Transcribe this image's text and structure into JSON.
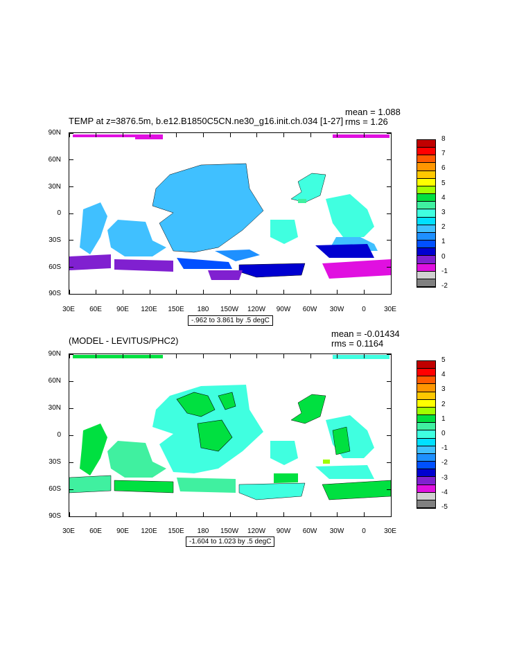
{
  "top_plot": {
    "title": "TEMP at z=3876.5m, b.e12.B1850C5CN.ne30_g16.init.ch.034 [1-27]",
    "mean": "mean = 1.088",
    "rms": "rms = 1.26",
    "contour_info": "-.962 to 3.861 by .5 degC",
    "colorbar_labels": [
      "8",
      "7",
      "6",
      "5",
      "4",
      "3",
      "2",
      "1",
      "0",
      "-1",
      "-2"
    ],
    "colorbar_colors": [
      "#c00000",
      "#ff0000",
      "#ff5a00",
      "#ff9600",
      "#ffc800",
      "#ffff00",
      "#a0ff00",
      "#00e040",
      "#40f0a0",
      "#40ffe0",
      "#00e0ff",
      "#40c0ff",
      "#1e90ff",
      "#0050ff",
      "#0000d0",
      "#8020d0",
      "#e010e0",
      "#d0d0d0",
      "#808080"
    ]
  },
  "bottom_plot": {
    "title": "(MODEL - LEVITUS/PHC2)",
    "mean": "mean = -0.01434",
    "rms": "rms = 0.1164",
    "contour_info": "-1.604 to 1.023 by .5 degC",
    "colorbar_labels": [
      "5",
      "4",
      "3",
      "2",
      "1",
      "0",
      "-1",
      "-2",
      "-3",
      "-4",
      "-5"
    ],
    "colorbar_colors": [
      "#c00000",
      "#ff0000",
      "#ff5a00",
      "#ff9600",
      "#ffc800",
      "#ffff00",
      "#a0ff00",
      "#00e040",
      "#40f0a0",
      "#40ffe0",
      "#00e0ff",
      "#40c0ff",
      "#1e90ff",
      "#0050ff",
      "#0000d0",
      "#8020d0",
      "#e010e0",
      "#d0d0d0",
      "#808080"
    ]
  },
  "lat_labels": [
    "90N",
    "60N",
    "30N",
    "0",
    "30S",
    "60S",
    "90S"
  ],
  "lon_labels": [
    "30E",
    "60E",
    "90E",
    "120E",
    "150E",
    "180",
    "150W",
    "120W",
    "90W",
    "60W",
    "30W",
    "0",
    "30E"
  ]
}
